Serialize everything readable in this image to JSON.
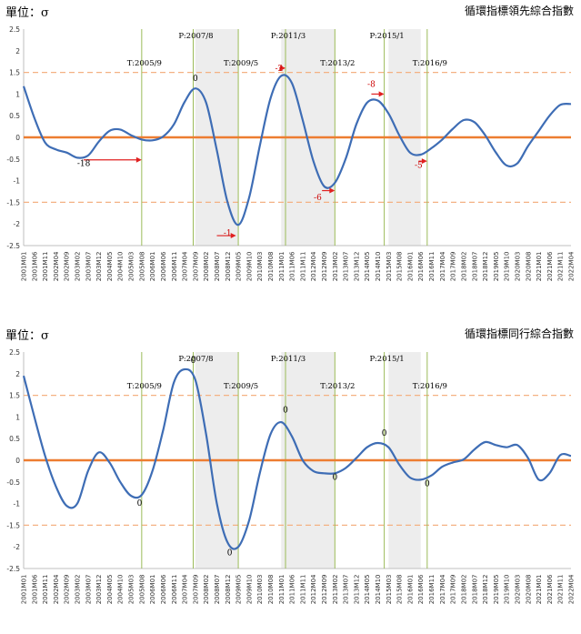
{
  "chart_data": [
    {
      "type": "line",
      "unit_label": "單位：σ",
      "title": "循環指標領先綜合指數",
      "ylim": [
        -2.5,
        2.5
      ],
      "yticks": [
        "2.5",
        "2",
        "1.5",
        "1",
        "0.5",
        "0",
        "-0.5",
        "-1",
        "-1.5",
        "-2",
        "-2.5"
      ],
      "x_tick_labels": [
        "2001M01",
        "2001M06",
        "2001M11",
        "2002M04",
        "2002M09",
        "2003M02",
        "2003M07",
        "2003M12",
        "2004M05",
        "2004M10",
        "2005M03",
        "2005M08",
        "2006M01",
        "2006M06",
        "2006M11",
        "2007M04",
        "2007M09",
        "2008M02",
        "2008M07",
        "2008M12",
        "2009M05",
        "2009M10",
        "2010M03",
        "2010M08",
        "2011M01",
        "2011M06",
        "2011M11",
        "2012M04",
        "2012M09",
        "2013M02",
        "2013M07",
        "2013M12",
        "2014M05",
        "2014M10",
        "2015M03",
        "2015M08",
        "2016M01",
        "2016M06",
        "2016M11",
        "2017M04",
        "2017M09",
        "2018M02",
        "2018M07",
        "2018M12",
        "2019M05",
        "2019M10",
        "2020M03",
        "2020M08",
        "2021M01",
        "2021M06",
        "2021M11",
        "2022M04"
      ],
      "reference_lines": [
        1.5,
        -1.5
      ],
      "series": [
        {
          "color": "#3e6db5",
          "points": [
            [
              "2001M01",
              1.18
            ],
            [
              "2001M06",
              0.45
            ],
            [
              "2001M11",
              -0.12
            ],
            [
              "2002M04",
              -0.28
            ],
            [
              "2002M09",
              -0.35
            ],
            [
              "2003M02",
              -0.47
            ],
            [
              "2003M07",
              -0.42
            ],
            [
              "2003M12",
              -0.1
            ],
            [
              "2004M05",
              0.15
            ],
            [
              "2004M10",
              0.18
            ],
            [
              "2005M03",
              0.05
            ],
            [
              "2005M08",
              -0.05
            ],
            [
              "2006M01",
              -0.07
            ],
            [
              "2006M06",
              0.02
            ],
            [
              "2006M11",
              0.3
            ],
            [
              "2007M04",
              0.82
            ],
            [
              "2007M09",
              1.13
            ],
            [
              "2008M02",
              0.8
            ],
            [
              "2008M07",
              -0.3
            ],
            [
              "2008M12",
              -1.5
            ],
            [
              "2009M05",
              -2.02
            ],
            [
              "2009M10",
              -1.4
            ],
            [
              "2010M03",
              -0.2
            ],
            [
              "2010M08",
              0.9
            ],
            [
              "2011M01",
              1.42
            ],
            [
              "2011M06",
              1.25
            ],
            [
              "2011M11",
              0.4
            ],
            [
              "2012M04",
              -0.55
            ],
            [
              "2012M09",
              -1.13
            ],
            [
              "2013M02",
              -1.05
            ],
            [
              "2013M07",
              -0.5
            ],
            [
              "2013M12",
              0.3
            ],
            [
              "2014M05",
              0.8
            ],
            [
              "2014M10",
              0.85
            ],
            [
              "2015M03",
              0.55
            ],
            [
              "2015M08",
              0.05
            ],
            [
              "2016M01",
              -0.35
            ],
            [
              "2016M06",
              -0.4
            ],
            [
              "2016M11",
              -0.25
            ],
            [
              "2017M04",
              -0.05
            ],
            [
              "2017M09",
              0.2
            ],
            [
              "2018M02",
              0.4
            ],
            [
              "2018M07",
              0.35
            ],
            [
              "2018M12",
              0.05
            ],
            [
              "2019M05",
              -0.35
            ],
            [
              "2019M10",
              -0.65
            ],
            [
              "2020M03",
              -0.6
            ],
            [
              "2020M08",
              -0.2
            ],
            [
              "2021M01",
              0.15
            ],
            [
              "2021M06",
              0.5
            ],
            [
              "2021M11",
              0.75
            ],
            [
              "2022M04",
              0.77
            ]
          ]
        }
      ],
      "shaded_periods": [
        [
          "2007M09",
          "2009M05"
        ],
        [
          "2011M01",
          "2013M02"
        ],
        [
          "2015M03",
          "2016M06"
        ]
      ],
      "vertical_markers": [
        {
          "x": "2005M08",
          "label": "T:2005/9"
        },
        {
          "x": "2007M08",
          "label": "P:2007/8"
        },
        {
          "x": "2009M05",
          "label": "T:2009/5"
        },
        {
          "x": "2011M03",
          "label": "P:2011/3"
        },
        {
          "x": "2013M02",
          "label": "T:2013/2"
        },
        {
          "x": "2015M01",
          "label": "P:2015/1"
        },
        {
          "x": "2016M09",
          "label": "T:2016/9"
        }
      ],
      "lead_annotations": [
        {
          "text": "-18",
          "x": "2003M05",
          "y": -0.66,
          "color": "#000000"
        },
        {
          "text": "0",
          "x": "2007M09",
          "y": 1.3,
          "color": "#000000"
        },
        {
          "text": "-1",
          "x": "2008M12",
          "y": -2.27,
          "color": "#cc0000"
        },
        {
          "text": "-2",
          "x": "2010M12",
          "y": 1.53,
          "color": "#cc0000"
        },
        {
          "text": "-6",
          "x": "2012M06",
          "y": -1.45,
          "color": "#cc0000"
        },
        {
          "text": "-8",
          "x": "2014M07",
          "y": 1.17,
          "color": "#cc0000"
        },
        {
          "text": "-5",
          "x": "2016M05",
          "y": -0.7,
          "color": "#cc0000"
        }
      ],
      "arrows": [
        {
          "x1": "2003M05",
          "x2": "2005M08",
          "y": -0.52
        },
        {
          "x1": "2008M07",
          "x2": "2009M04",
          "y": -2.27
        },
        {
          "x1": "2010M12",
          "x2": "2011M03",
          "y": 1.6
        },
        {
          "x1": "2012M08",
          "x2": "2013M02",
          "y": -1.23
        },
        {
          "x1": "2014M07",
          "x2": "2015M01",
          "y": 1.0
        },
        {
          "x1": "2016M05",
          "x2": "2016M09",
          "y": -0.55
        }
      ]
    },
    {
      "type": "line",
      "unit_label": "單位：σ",
      "title": "循環指標同行綜合指數",
      "ylim": [
        -2.5,
        2.5
      ],
      "yticks": [
        "2.5",
        "2",
        "1.5",
        "1",
        "0.5",
        "0",
        "-0.5",
        "-1",
        "-1.5",
        "-2",
        "-2.5"
      ],
      "x_tick_labels": [
        "2001M01",
        "2001M06",
        "2001M11",
        "2002M04",
        "2002M09",
        "2003M02",
        "2003M07",
        "2003M12",
        "2004M05",
        "2004M10",
        "2005M03",
        "2005M08",
        "2006M01",
        "2006M06",
        "2006M11",
        "2007M04",
        "2007M09",
        "2008M02",
        "2008M07",
        "2008M12",
        "2009M05",
        "2009M10",
        "2010M03",
        "2010M08",
        "2011M01",
        "2011M06",
        "2011M11",
        "2012M04",
        "2012M09",
        "2013M02",
        "2013M07",
        "2013M12",
        "2014M05",
        "2014M10",
        "2015M03",
        "2015M08",
        "2016M01",
        "2016M06",
        "2016M11",
        "2017M04",
        "2017M09",
        "2018M02",
        "2018M07",
        "2018M12",
        "2019M05",
        "2019M10",
        "2020M03",
        "2020M08",
        "2021M01",
        "2021M06",
        "2021M11",
        "2022M04"
      ],
      "reference_lines": [
        1.5,
        -1.5
      ],
      "series": [
        {
          "color": "#3e6db5",
          "points": [
            [
              "2001M01",
              1.95
            ],
            [
              "2001M06",
              1.0
            ],
            [
              "2001M11",
              0.1
            ],
            [
              "2002M04",
              -0.6
            ],
            [
              "2002M09",
              -1.05
            ],
            [
              "2003M02",
              -1.0
            ],
            [
              "2003M07",
              -0.25
            ],
            [
              "2003M12",
              0.18
            ],
            [
              "2004M05",
              -0.05
            ],
            [
              "2004M10",
              -0.5
            ],
            [
              "2005M03",
              -0.82
            ],
            [
              "2005M08",
              -0.8
            ],
            [
              "2006M01",
              -0.25
            ],
            [
              "2006M06",
              0.7
            ],
            [
              "2006M11",
              1.8
            ],
            [
              "2007M04",
              2.1
            ],
            [
              "2007M09",
              1.85
            ],
            [
              "2008M02",
              0.6
            ],
            [
              "2008M07",
              -1.0
            ],
            [
              "2008M12",
              -1.9
            ],
            [
              "2009M05",
              -2.0
            ],
            [
              "2009M10",
              -1.4
            ],
            [
              "2010M03",
              -0.3
            ],
            [
              "2010M08",
              0.6
            ],
            [
              "2011M01",
              0.88
            ],
            [
              "2011M06",
              0.55
            ],
            [
              "2011M11",
              0.0
            ],
            [
              "2012M04",
              -0.25
            ],
            [
              "2012M09",
              -0.3
            ],
            [
              "2013M02",
              -0.3
            ],
            [
              "2013M07",
              -0.18
            ],
            [
              "2013M12",
              0.05
            ],
            [
              "2014M05",
              0.3
            ],
            [
              "2014M10",
              0.4
            ],
            [
              "2015M03",
              0.3
            ],
            [
              "2015M08",
              -0.1
            ],
            [
              "2016M01",
              -0.4
            ],
            [
              "2016M06",
              -0.45
            ],
            [
              "2016M11",
              -0.35
            ],
            [
              "2017M04",
              -0.15
            ],
            [
              "2017M09",
              -0.05
            ],
            [
              "2018M02",
              0.02
            ],
            [
              "2018M07",
              0.25
            ],
            [
              "2018M12",
              0.42
            ],
            [
              "2019M05",
              0.35
            ],
            [
              "2019M10",
              0.3
            ],
            [
              "2020M03",
              0.35
            ],
            [
              "2020M08",
              0.05
            ],
            [
              "2021M01",
              -0.45
            ],
            [
              "2021M06",
              -0.3
            ],
            [
              "2021M11",
              0.12
            ],
            [
              "2022M04",
              0.1
            ]
          ]
        }
      ],
      "shaded_periods": [
        [
          "2007M09",
          "2009M05"
        ],
        [
          "2011M01",
          "2013M02"
        ],
        [
          "2015M03",
          "2016M06"
        ]
      ],
      "vertical_markers": [
        {
          "x": "2005M08",
          "label": "T:2005/9"
        },
        {
          "x": "2007M08",
          "label": "P:2007/8"
        },
        {
          "x": "2009M05",
          "label": "T:2009/5"
        },
        {
          "x": "2011M03",
          "label": "P:2011/3"
        },
        {
          "x": "2013M02",
          "label": "T:2013/2"
        },
        {
          "x": "2015M01",
          "label": "P:2015/1"
        },
        {
          "x": "2016M09",
          "label": "T:2016/9"
        }
      ],
      "lead_annotations": [
        {
          "text": "0",
          "x": "2005M07",
          "y": -1.05,
          "color": "#000000"
        },
        {
          "text": "0",
          "x": "2007M08",
          "y": 2.25,
          "color": "#000000"
        },
        {
          "text": "0",
          "x": "2009M01",
          "y": -2.2,
          "color": "#000000"
        },
        {
          "text": "0",
          "x": "2011M03",
          "y": 1.1,
          "color": "#000000"
        },
        {
          "text": "0",
          "x": "2013M02",
          "y": -0.45,
          "color": "#000000"
        },
        {
          "text": "0",
          "x": "2015M01",
          "y": 0.57,
          "color": "#000000"
        },
        {
          "text": "0",
          "x": "2016M09",
          "y": -0.6,
          "color": "#000000"
        }
      ],
      "arrows": []
    }
  ],
  "colors": {
    "zero_line": "#ed7d31",
    "reference_line": "#f4b183",
    "marker_line": "#9bbb59",
    "shade": "#ededed",
    "series": "#3e6db5",
    "annotation_red": "#cc0000"
  }
}
